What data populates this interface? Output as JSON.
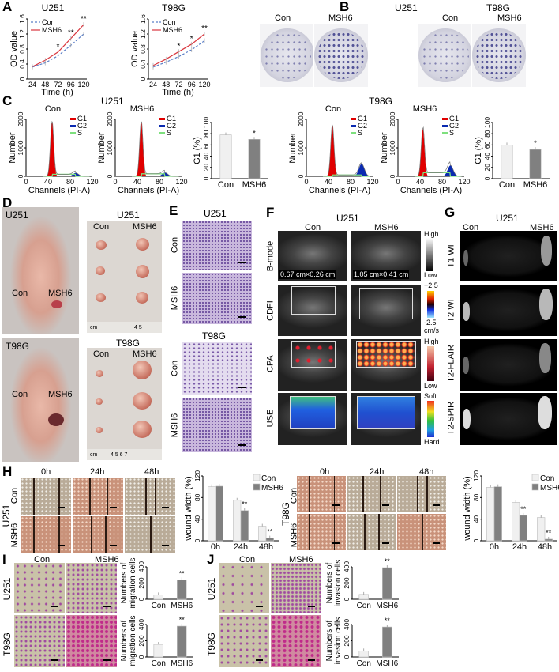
{
  "figure": {
    "panel_labels": {
      "A": "A",
      "B": "B",
      "C": "C",
      "D": "D",
      "E": "E",
      "F": "F",
      "G": "G",
      "H": "H",
      "I": "I",
      "J": "J"
    },
    "B": {
      "u251": "U251",
      "t98g": "T98G",
      "con": "Con",
      "msh6": "MSH6"
    },
    "C": {
      "u251": "U251",
      "t98g": "T98G",
      "con": "Con",
      "msh6": "MSH6"
    },
    "D": {
      "u251_mouse": "U251",
      "t98g_mouse": "T98G",
      "con": "Con",
      "msh6": "MSH6",
      "u251_tumors": "U251",
      "t98g_tumors": "T98G",
      "ruler_unit": "cm",
      "ruler_marks": "4   5",
      "ruler_marks_2": "4  5  6  7"
    },
    "E": {
      "u251": "U251",
      "t98g": "T98G",
      "con": "Con",
      "msh6": "MSH6"
    },
    "F": {
      "title": "U251",
      "con": "Con",
      "msh6": "MSH6",
      "rows": [
        "B-mode",
        "CDFI",
        "CPA",
        "USE"
      ],
      "size_con": "0.67 cm×0.26 cm",
      "size_msh6": "1.05 cm×0.41 cm",
      "bmode_scale": [
        "High",
        "Low"
      ],
      "cdfi_scale": [
        "+2.5",
        "-2.5",
        "cm/s"
      ],
      "cpa_scale": [
        "High",
        "Low"
      ],
      "use_scale": [
        "Soft",
        "Hard"
      ]
    },
    "G": {
      "title": "U251",
      "con": "Con",
      "msh6": "MSH6",
      "rows": [
        "T1 WI",
        "T2 WI",
        "T2-FLAIR",
        "T2-SPIR"
      ]
    },
    "H": {
      "times": [
        "0h",
        "24h",
        "48h"
      ],
      "u251": "U251",
      "t98g": "T98G",
      "con": "Con",
      "msh6": "MSH6"
    },
    "I": {
      "con": "Con",
      "msh6": "MSH6",
      "u251": "U251",
      "t98g": "T98G"
    },
    "J": {
      "con": "Con",
      "msh6": "MSH6",
      "u251": "U251",
      "t98g": "T98G"
    },
    "colors": {
      "con_line": "#5b7fc7",
      "msh6_line": "#d9363e",
      "g1": "#e00000",
      "g2": "#0a2ab0",
      "s": "#7ee07e",
      "con_bar": "#f0f0f0",
      "msh6_bar": "#808080"
    }
  },
  "chart_data": [
    {
      "id": "A-U251",
      "type": "line",
      "title": "U251",
      "xlabel": "Time (h)",
      "ylabel": "OD value",
      "x": [
        24,
        48,
        72,
        96,
        120
      ],
      "ylim": [
        0,
        1.6
      ],
      "yticks": [
        "0",
        "0.4",
        "0.8",
        "1.2",
        "1.6"
      ],
      "legend": "top-left",
      "series": [
        {
          "name": "Con",
          "values": [
            0.32,
            0.43,
            0.62,
            0.9,
            1.2
          ],
          "color": "#5b7fc7",
          "dashed": true
        },
        {
          "name": "MSH6",
          "values": [
            0.33,
            0.5,
            0.72,
            1.08,
            1.45
          ],
          "color": "#d9363e"
        }
      ],
      "significance": [
        "",
        "",
        "*",
        "**",
        "**"
      ]
    },
    {
      "id": "A-T98G",
      "type": "line",
      "title": "T98G",
      "xlabel": "Time (h)",
      "ylabel": "OD value",
      "x": [
        24,
        48,
        72,
        96,
        120
      ],
      "ylim": [
        0,
        1.6
      ],
      "yticks": [
        "0",
        "0.4",
        "0.8",
        "1.2",
        "1.6"
      ],
      "legend": "top-left",
      "series": [
        {
          "name": "Con",
          "values": [
            0.32,
            0.45,
            0.6,
            0.78,
            1.02
          ],
          "color": "#5b7fc7",
          "dashed": true
        },
        {
          "name": "MSH6",
          "values": [
            0.36,
            0.53,
            0.73,
            0.93,
            1.2
          ],
          "color": "#d9363e"
        }
      ],
      "significance": [
        "",
        "",
        "*",
        "*",
        "**"
      ]
    },
    {
      "id": "C-U251-Con",
      "type": "area",
      "title": "Con",
      "xlabel": "Channels (PI-A)",
      "ylabel": "Number",
      "xlim": [
        0,
        120
      ],
      "ylim": [
        0,
        2500
      ],
      "xticks": [
        "0",
        "40",
        "80",
        "120"
      ],
      "yticks": [
        "0",
        "1000",
        "2000"
      ],
      "legend_entries": [
        "G1",
        "G2",
        "S"
      ],
      "g1_peak": {
        "channel": 47,
        "count": 2400
      },
      "g2_peak": {
        "channel": 90,
        "count": 150
      },
      "s_level": 90
    },
    {
      "id": "C-U251-MSH6",
      "type": "area",
      "title": "MSH6",
      "xlabel": "Channels (PI-A)",
      "ylabel": "Number",
      "xlim": [
        0,
        120
      ],
      "ylim": [
        0,
        2500
      ],
      "xticks": [
        "0",
        "40",
        "80",
        "120"
      ],
      "yticks": [
        "0",
        "1000",
        "2000"
      ],
      "legend_entries": [
        "G1",
        "G2",
        "S"
      ],
      "g1_peak": {
        "channel": 47,
        "count": 2400
      },
      "g2_peak": {
        "channel": 90,
        "count": 160
      },
      "s_level": 110
    },
    {
      "id": "C-U251-G1",
      "type": "bar",
      "categories": [
        "Con",
        "MSH6"
      ],
      "values": [
        78,
        70
      ],
      "ylabel": "G1 (%)",
      "ylim": [
        0,
        100
      ],
      "yticks": [
        "0",
        "20",
        "40",
        "60",
        "80",
        "100"
      ],
      "significance": [
        "",
        "*"
      ],
      "bar_colors": [
        "#f0f0f0",
        "#808080"
      ]
    },
    {
      "id": "C-T98G-Con",
      "type": "area",
      "title": "Con",
      "xlabel": "Channels (PI-A)",
      "ylabel": "Number",
      "xlim": [
        0,
        120
      ],
      "ylim": [
        0,
        2500
      ],
      "xticks": [
        "0",
        "40",
        "80",
        "120"
      ],
      "yticks": [
        "0",
        "1000",
        "2000"
      ],
      "legend_entries": [
        "G1",
        "G2",
        "S"
      ],
      "g1_peak": {
        "channel": 47,
        "count": 2250
      },
      "g2_peak": {
        "channel": 100,
        "count": 550
      },
      "s_level": 60
    },
    {
      "id": "C-T98G-MSH6",
      "type": "area",
      "title": "MSH6",
      "xlabel": "Channels (PI-A)",
      "ylabel": "Number",
      "xlim": [
        0,
        120
      ],
      "ylim": [
        0,
        2500
      ],
      "xticks": [
        "0",
        "40",
        "80",
        "120"
      ],
      "yticks": [
        "0",
        "1000",
        "2000"
      ],
      "legend_entries": [
        "G1",
        "G2",
        "S"
      ],
      "g1_peak": {
        "channel": 45,
        "count": 2100
      },
      "g2_peak": {
        "channel": 95,
        "count": 480
      },
      "s_level": 160
    },
    {
      "id": "C-T98G-G1",
      "type": "bar",
      "categories": [
        "Con",
        "MSH6"
      ],
      "values": [
        60,
        52
      ],
      "ylabel": "G1 (%)",
      "ylim": [
        0,
        100
      ],
      "yticks": [
        "0",
        "20",
        "40",
        "60",
        "80",
        "100"
      ],
      "significance": [
        "",
        "*"
      ],
      "bar_colors": [
        "#f0f0f0",
        "#808080"
      ]
    },
    {
      "id": "H-U251",
      "type": "bar",
      "categories": [
        "0h",
        "24h",
        "48h"
      ],
      "ylabel": "wound width (%)",
      "ylim": [
        0,
        120
      ],
      "yticks": [
        "0",
        "40",
        "80",
        "120"
      ],
      "legend": "top-right",
      "series": [
        {
          "name": "Con",
          "values": [
            100,
            75,
            27
          ],
          "color": "#f0f0f0"
        },
        {
          "name": "MSH6",
          "values": [
            101,
            56,
            5
          ],
          "color": "#808080"
        }
      ],
      "significance": [
        "",
        "**",
        "**"
      ]
    },
    {
      "id": "H-T98G",
      "type": "bar",
      "categories": [
        "0h",
        "24h",
        "48h"
      ],
      "ylabel": "wound width (%)",
      "ylim": [
        0,
        120
      ],
      "yticks": [
        "0",
        "40",
        "80",
        "120"
      ],
      "legend": "top-right",
      "series": [
        {
          "name": "Con",
          "values": [
            99,
            71,
            43
          ],
          "color": "#f0f0f0"
        },
        {
          "name": "MSH6",
          "values": [
            100,
            47,
            3
          ],
          "color": "#808080"
        }
      ],
      "significance": [
        "",
        "**",
        "**"
      ]
    },
    {
      "id": "I-U251",
      "type": "bar",
      "categories": [
        "Con",
        "MSH6"
      ],
      "values": [
        55,
        240
      ],
      "ylabel": [
        "Numbers of",
        "migration cells"
      ],
      "ylim": [
        0,
        400
      ],
      "yticks": [
        "0",
        "200",
        "400"
      ],
      "significance": [
        "",
        "**"
      ],
      "bar_colors": [
        "#f0f0f0",
        "#808080"
      ]
    },
    {
      "id": "I-T98G",
      "type": "bar",
      "categories": [
        "Con",
        "MSH6"
      ],
      "values": [
        155,
        380
      ],
      "ylabel": [
        "Numbers of",
        "migration cells"
      ],
      "ylim": [
        0,
        400
      ],
      "yticks": [
        "0",
        "200",
        "400"
      ],
      "significance": [
        "",
        "**"
      ],
      "bar_colors": [
        "#f0f0f0",
        "#808080"
      ]
    },
    {
      "id": "J-U251",
      "type": "bar",
      "categories": [
        "Con",
        "MSH6"
      ],
      "values": [
        60,
        390
      ],
      "ylabel": [
        "Numbers of",
        "invasion cells"
      ],
      "ylim": [
        0,
        400
      ],
      "yticks": [
        "0",
        "200",
        "400"
      ],
      "significance": [
        "",
        "**"
      ],
      "bar_colors": [
        "#f0f0f0",
        "#808080"
      ]
    },
    {
      "id": "J-T98G",
      "type": "bar",
      "categories": [
        "Con",
        "MSH6"
      ],
      "values": [
        75,
        370
      ],
      "ylabel": [
        "Numbers of",
        "invasion cells"
      ],
      "ylim": [
        0,
        400
      ],
      "yticks": [
        "0",
        "200",
        "400"
      ],
      "significance": [
        "",
        "**"
      ],
      "bar_colors": [
        "#f0f0f0",
        "#808080"
      ]
    }
  ]
}
